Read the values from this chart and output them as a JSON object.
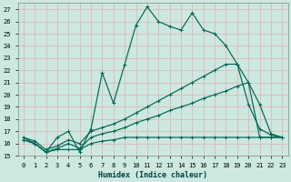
{
  "xlabel": "Humidex (Indice chaleur)",
  "xlim": [
    -0.5,
    23.5
  ],
  "ylim": [
    15,
    27.5
  ],
  "yticks": [
    15,
    16,
    17,
    18,
    19,
    20,
    21,
    22,
    23,
    24,
    25,
    26,
    27
  ],
  "xticks": [
    0,
    1,
    2,
    3,
    4,
    5,
    6,
    7,
    8,
    9,
    10,
    11,
    12,
    13,
    14,
    15,
    16,
    17,
    18,
    19,
    20,
    21,
    22,
    23
  ],
  "bg_color": "#cce8e0",
  "grid_color": "#e0b8b8",
  "line_color": "#006655",
  "line1_x": [
    0,
    1,
    2,
    3,
    4,
    5,
    6,
    7,
    8,
    9,
    10,
    11,
    12,
    13,
    14,
    15,
    16,
    17,
    18,
    19,
    20,
    21,
    22,
    23
  ],
  "line1_y": [
    16.5,
    16.0,
    15.3,
    16.5,
    17.0,
    15.3,
    17.2,
    21.8,
    19.3,
    22.5,
    25.7,
    27.2,
    26.0,
    25.6,
    25.3,
    26.7,
    25.3,
    25.0,
    24.0,
    22.5,
    19.2,
    17.2,
    16.7,
    16.5
  ],
  "line2_x": [
    0,
    1,
    2,
    3,
    4,
    5,
    6,
    7,
    8,
    9,
    10,
    11,
    12,
    13,
    14,
    15,
    16,
    17,
    18,
    19,
    20,
    21,
    22,
    23
  ],
  "line2_y": [
    16.5,
    16.2,
    15.5,
    15.8,
    16.3,
    16.0,
    17.0,
    17.3,
    17.6,
    18.0,
    18.5,
    19.0,
    19.5,
    20.0,
    20.5,
    21.0,
    21.5,
    22.0,
    22.5,
    22.5,
    21.0,
    16.5,
    16.5,
    16.5
  ],
  "line3_x": [
    0,
    1,
    2,
    3,
    4,
    5,
    6,
    7,
    8,
    9,
    10,
    11,
    12,
    13,
    14,
    15,
    16,
    17,
    18,
    19,
    20,
    21,
    22,
    23
  ],
  "line3_y": [
    16.3,
    16.0,
    15.3,
    15.6,
    16.0,
    15.6,
    16.5,
    16.8,
    17.0,
    17.3,
    17.7,
    18.0,
    18.3,
    18.7,
    19.0,
    19.3,
    19.7,
    20.0,
    20.3,
    20.7,
    21.0,
    19.2,
    16.8,
    16.5
  ],
  "line4_x": [
    0,
    1,
    2,
    3,
    4,
    5,
    6,
    7,
    8,
    9,
    10,
    11,
    12,
    13,
    14,
    15,
    16,
    17,
    18,
    19,
    20,
    21,
    22,
    23
  ],
  "line4_y": [
    16.3,
    16.0,
    15.3,
    15.5,
    15.5,
    15.5,
    16.0,
    16.2,
    16.3,
    16.5,
    16.5,
    16.5,
    16.5,
    16.5,
    16.5,
    16.5,
    16.5,
    16.5,
    16.5,
    16.5,
    16.5,
    16.5,
    16.5,
    16.5
  ]
}
